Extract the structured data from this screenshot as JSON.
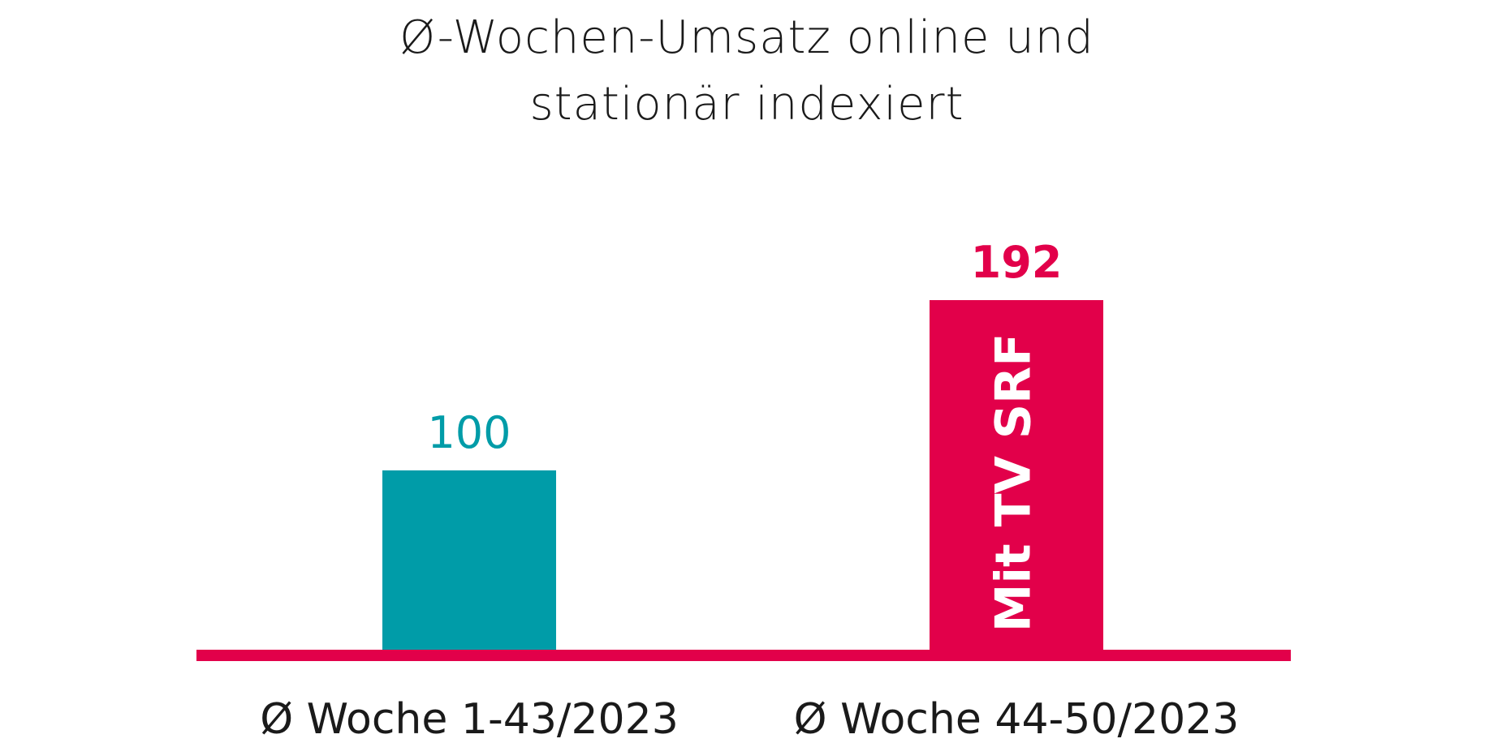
{
  "chart_data": {
    "type": "bar",
    "title_lines": [
      "Ø-Wochen-Umsatz online und",
      "stationär indexiert"
    ],
    "categories": [
      "Ø Woche 1-43/2023",
      "Ø Woche 44-50/2023"
    ],
    "values": [
      100,
      192
    ],
    "value_labels": [
      "100",
      "192"
    ],
    "bar_inner_labels": [
      "",
      "Mit TV SRF"
    ],
    "colors": [
      "#009ca8",
      "#e2004a"
    ],
    "baseline_color": "#e2004a",
    "ylim": [
      0,
      200
    ],
    "grid": false
  }
}
